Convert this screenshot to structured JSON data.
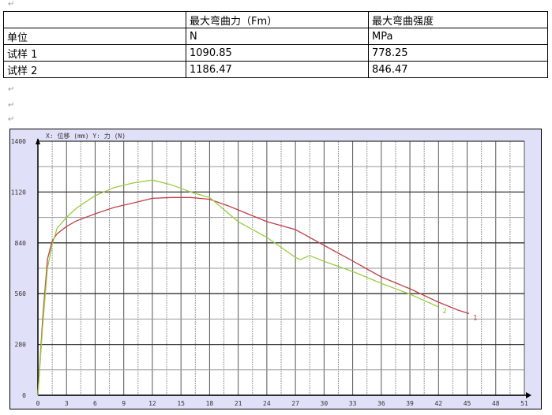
{
  "table": {
    "header": [
      "",
      "最大弯曲力（Fm）",
      "最大弯曲强度"
    ],
    "rows": [
      [
        "单位",
        "N",
        "MPa"
      ],
      [
        "试样 1",
        "1090.85",
        "778.25"
      ],
      [
        "试样 2",
        "1186.47",
        "846.47"
      ]
    ]
  },
  "chart_data": {
    "type": "line",
    "title": "X: 位移 (mm)    Y: 力 (N)",
    "xlabel": "位移 (mm)",
    "ylabel": "力 (N)",
    "xlim": [
      0,
      51
    ],
    "ylim": [
      0,
      1400
    ],
    "xticks": [
      0,
      3,
      6,
      9,
      12,
      15,
      18,
      21,
      24,
      27,
      30,
      33,
      36,
      39,
      42,
      45,
      48,
      51
    ],
    "yticks": [
      0,
      280,
      560,
      840,
      1120,
      1400
    ],
    "grid": true,
    "series": [
      {
        "name": "1",
        "color": "#c0404a",
        "x": [
          0,
          0.5,
          1,
          1.5,
          2,
          3,
          4,
          6,
          8,
          10,
          12,
          14,
          16,
          18,
          20,
          22,
          24,
          27,
          30,
          33,
          36,
          39,
          42,
          44,
          45.2
        ],
        "y": [
          0,
          420,
          750,
          850,
          890,
          930,
          960,
          1000,
          1035,
          1060,
          1085,
          1090,
          1090,
          1080,
          1043,
          1000,
          957,
          913,
          826,
          740,
          652,
          587,
          513,
          470,
          450
        ]
      },
      {
        "name": "2",
        "color": "#9acd40",
        "x": [
          0,
          0.5,
          1,
          1.5,
          2,
          3,
          4,
          6,
          8,
          10,
          12,
          14,
          16,
          18,
          21,
          24,
          27,
          27.5,
          28.5,
          30,
          33,
          36,
          39,
          42
        ],
        "y": [
          0,
          380,
          700,
          830,
          920,
          980,
          1030,
          1100,
          1145,
          1170,
          1186,
          1160,
          1120,
          1090,
          957,
          870,
          760,
          748,
          770,
          738,
          682,
          617,
          557,
          487
        ]
      }
    ]
  }
}
